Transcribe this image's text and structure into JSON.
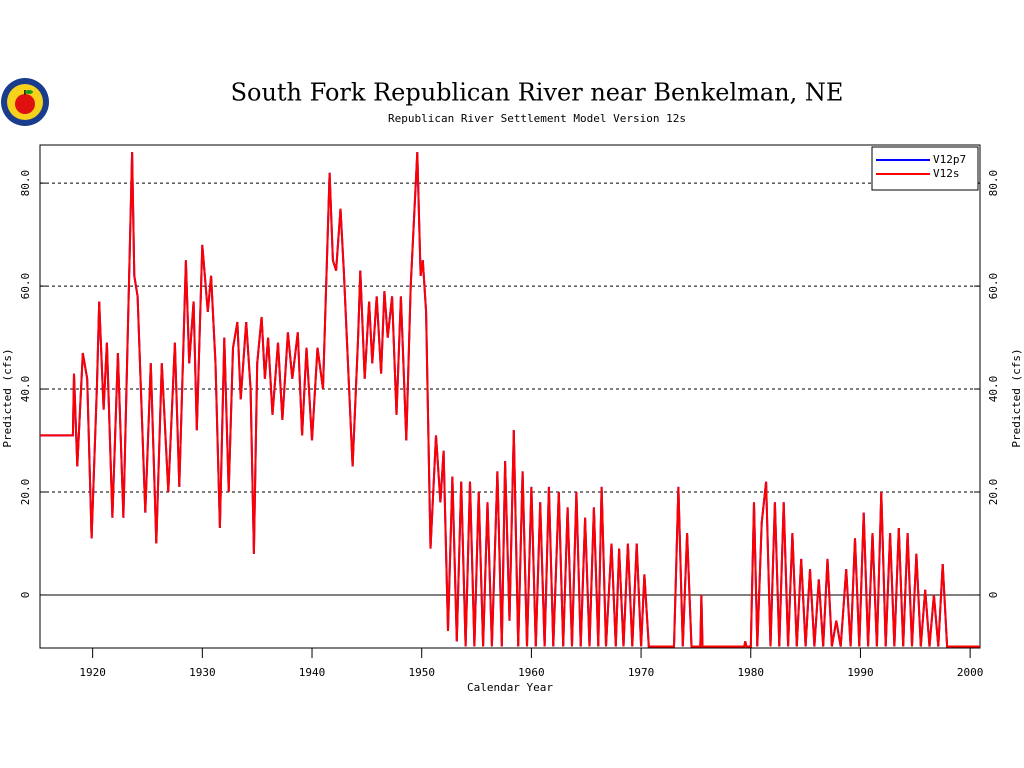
{
  "chart_data": {
    "type": "line",
    "title": "South Fork Republican River near Benkelman, NE",
    "subtitle": "Republican River Settlement Model Version 12s",
    "xlabel": "Calendar Year",
    "ylabel": "Predicted (cfs)",
    "xlim": [
      1915.2,
      2000.9
    ],
    "xticks": [
      1920,
      1930,
      1940,
      1950,
      1960,
      1970,
      1980,
      1990,
      2000
    ],
    "ylim": [
      -10.3,
      87.4
    ],
    "yticks": [
      0,
      {
        "value": 20,
        "label": "20.0"
      },
      {
        "value": 40,
        "label": "40.0"
      },
      {
        "value": 60,
        "label": "60.0"
      },
      {
        "value": 80,
        "label": "80.0"
      }
    ],
    "grid": true,
    "legend": "upper right",
    "x": [
      1915.2,
      1918.2,
      1918.3,
      1918.6,
      1919.1,
      1919.5,
      1919.9,
      1920.4,
      1920.6,
      1921.0,
      1921.3,
      1921.8,
      1922.3,
      1922.8,
      1923.6,
      1923.8,
      1924.1,
      1924.8,
      1925.3,
      1925.8,
      1926.3,
      1926.9,
      1927.5,
      1927.9,
      1928.5,
      1928.8,
      1929.2,
      1929.5,
      1930.0,
      1930.5,
      1930.8,
      1931.2,
      1931.6,
      1932.0,
      1932.4,
      1932.8,
      1933.2,
      1933.5,
      1934.0,
      1934.4,
      1934.7,
      1935.0,
      1935.4,
      1935.7,
      1936.0,
      1936.4,
      1936.9,
      1937.3,
      1937.8,
      1938.2,
      1938.7,
      1939.1,
      1939.5,
      1940.0,
      1940.5,
      1941.0,
      1941.6,
      1941.9,
      1942.2,
      1942.6,
      1942.9,
      1943.7,
      1944.2,
      1944.4,
      1944.8,
      1945.2,
      1945.5,
      1945.9,
      1946.3,
      1946.6,
      1946.9,
      1947.3,
      1947.7,
      1948.1,
      1948.6,
      1949.0,
      1949.6,
      1949.9,
      1950.1,
      1950.4,
      1950.8,
      1951.3,
      1951.7,
      1952.0,
      1952.4,
      1952.8,
      1953.2,
      1953.6,
      1954.0,
      1954.4,
      1954.8,
      1955.2,
      1955.6,
      1956.0,
      1956.4,
      1956.9,
      1957.3,
      1957.6,
      1958.0,
      1958.4,
      1958.8,
      1959.2,
      1959.6,
      1960.0,
      1960.4,
      1960.8,
      1961.2,
      1961.6,
      1962.0,
      1962.5,
      1962.9,
      1963.3,
      1963.7,
      1964.1,
      1964.5,
      1964.9,
      1965.3,
      1965.7,
      1966.1,
      1966.4,
      1966.8,
      1967.3,
      1967.7,
      1968.0,
      1968.4,
      1968.8,
      1969.2,
      1969.6,
      1970.0,
      1970.3,
      1970.7,
      1973.0,
      1973.4,
      1973.8,
      1974.2,
      1974.6,
      1975.4,
      1975.5,
      1975.6,
      1979.4,
      1979.5,
      1979.6,
      1980.0,
      1980.3,
      1980.6,
      1981.0,
      1981.4,
      1981.8,
      1982.2,
      1982.6,
      1983.0,
      1983.4,
      1983.8,
      1984.2,
      1984.6,
      1985.0,
      1985.4,
      1985.8,
      1986.2,
      1986.6,
      1987.0,
      1987.4,
      1987.8,
      1988.2,
      1988.7,
      1989.1,
      1989.5,
      1989.9,
      1990.3,
      1990.7,
      1991.1,
      1991.5,
      1991.9,
      1992.3,
      1992.7,
      1993.1,
      1993.5,
      1993.9,
      1994.3,
      1994.7,
      1995.1,
      1995.5,
      1995.9,
      1996.3,
      1996.7,
      1997.1,
      1997.5,
      1997.9,
      2000.9
    ],
    "series": [
      {
        "name": "V12p7",
        "color": "#0000ff",
        "values": [
          31,
          31,
          43,
          25,
          47,
          42,
          11,
          41,
          57,
          36,
          49,
          15,
          47,
          15,
          86,
          62,
          58,
          16,
          45,
          10,
          45,
          20,
          49,
          21,
          65,
          45,
          57,
          32,
          68,
          55,
          62,
          45,
          13,
          50,
          20,
          48,
          53,
          38,
          53,
          40,
          8,
          45,
          54,
          42,
          50,
          35,
          49,
          34,
          51,
          42,
          51,
          31,
          48,
          30,
          48,
          40,
          82,
          65,
          63,
          75,
          63,
          25,
          50,
          63,
          42,
          57,
          45,
          58,
          43,
          59,
          50,
          58,
          35,
          58,
          30,
          60,
          86,
          62,
          65,
          55,
          9,
          31,
          18,
          28,
          -7,
          23,
          -9,
          22,
          -10,
          22,
          -10,
          20,
          -10,
          18,
          -10,
          24,
          -10,
          26,
          -5,
          32,
          -10,
          24,
          -10,
          21,
          -10,
          18,
          -10,
          21,
          -10,
          20,
          -10,
          17,
          -10,
          20,
          -10,
          15,
          -10,
          17,
          -10,
          21,
          -10,
          10,
          -10,
          9,
          -10,
          10,
          -10,
          10,
          -10,
          4,
          -10,
          -10,
          21,
          -10,
          12,
          -10,
          -10,
          0,
          -10,
          -10,
          -9,
          -10,
          -10,
          18,
          -10,
          14,
          22,
          -10,
          18,
          -10,
          18,
          -10,
          12,
          -10,
          7,
          -10,
          5,
          -10,
          3,
          -10,
          7,
          -10,
          -5,
          -10,
          5,
          -10,
          11,
          -10,
          16,
          -10,
          12,
          -10,
          20,
          -10,
          12,
          -10,
          13,
          -10,
          12,
          -10,
          8,
          -10,
          1,
          -10,
          0,
          -10,
          6,
          -10,
          -10
        ]
      },
      {
        "name": "V12s",
        "color": "#ff0000",
        "values": [
          31,
          31,
          43,
          25,
          47,
          42,
          11,
          41,
          57,
          36,
          49,
          15,
          47,
          15,
          86,
          62,
          58,
          16,
          45,
          10,
          45,
          20,
          49,
          21,
          65,
          45,
          57,
          32,
          68,
          55,
          62,
          45,
          13,
          50,
          20,
          48,
          53,
          38,
          53,
          40,
          8,
          45,
          54,
          42,
          50,
          35,
          49,
          34,
          51,
          42,
          51,
          31,
          48,
          30,
          48,
          40,
          82,
          65,
          63,
          75,
          63,
          25,
          50,
          63,
          42,
          57,
          45,
          58,
          43,
          59,
          50,
          58,
          35,
          58,
          30,
          60,
          86,
          62,
          65,
          55,
          9,
          31,
          18,
          28,
          -7,
          23,
          -9,
          22,
          -10,
          22,
          -10,
          20,
          -10,
          18,
          -10,
          24,
          -10,
          26,
          -5,
          32,
          -10,
          24,
          -10,
          21,
          -10,
          18,
          -10,
          21,
          -10,
          20,
          -10,
          17,
          -10,
          20,
          -10,
          15,
          -10,
          17,
          -10,
          21,
          -10,
          10,
          -10,
          9,
          -10,
          10,
          -10,
          10,
          -10,
          4,
          -10,
          -10,
          21,
          -10,
          12,
          -10,
          -10,
          0,
          -10,
          -10,
          -9,
          -10,
          -10,
          18,
          -10,
          14,
          22,
          -10,
          18,
          -10,
          18,
          -10,
          12,
          -10,
          7,
          -10,
          5,
          -10,
          3,
          -10,
          7,
          -10,
          -5,
          -10,
          5,
          -10,
          11,
          -10,
          16,
          -10,
          12,
          -10,
          20,
          -10,
          12,
          -10,
          13,
          -10,
          12,
          -10,
          8,
          -10,
          1,
          -10,
          0,
          -10,
          6,
          -10,
          -10
        ]
      }
    ]
  }
}
